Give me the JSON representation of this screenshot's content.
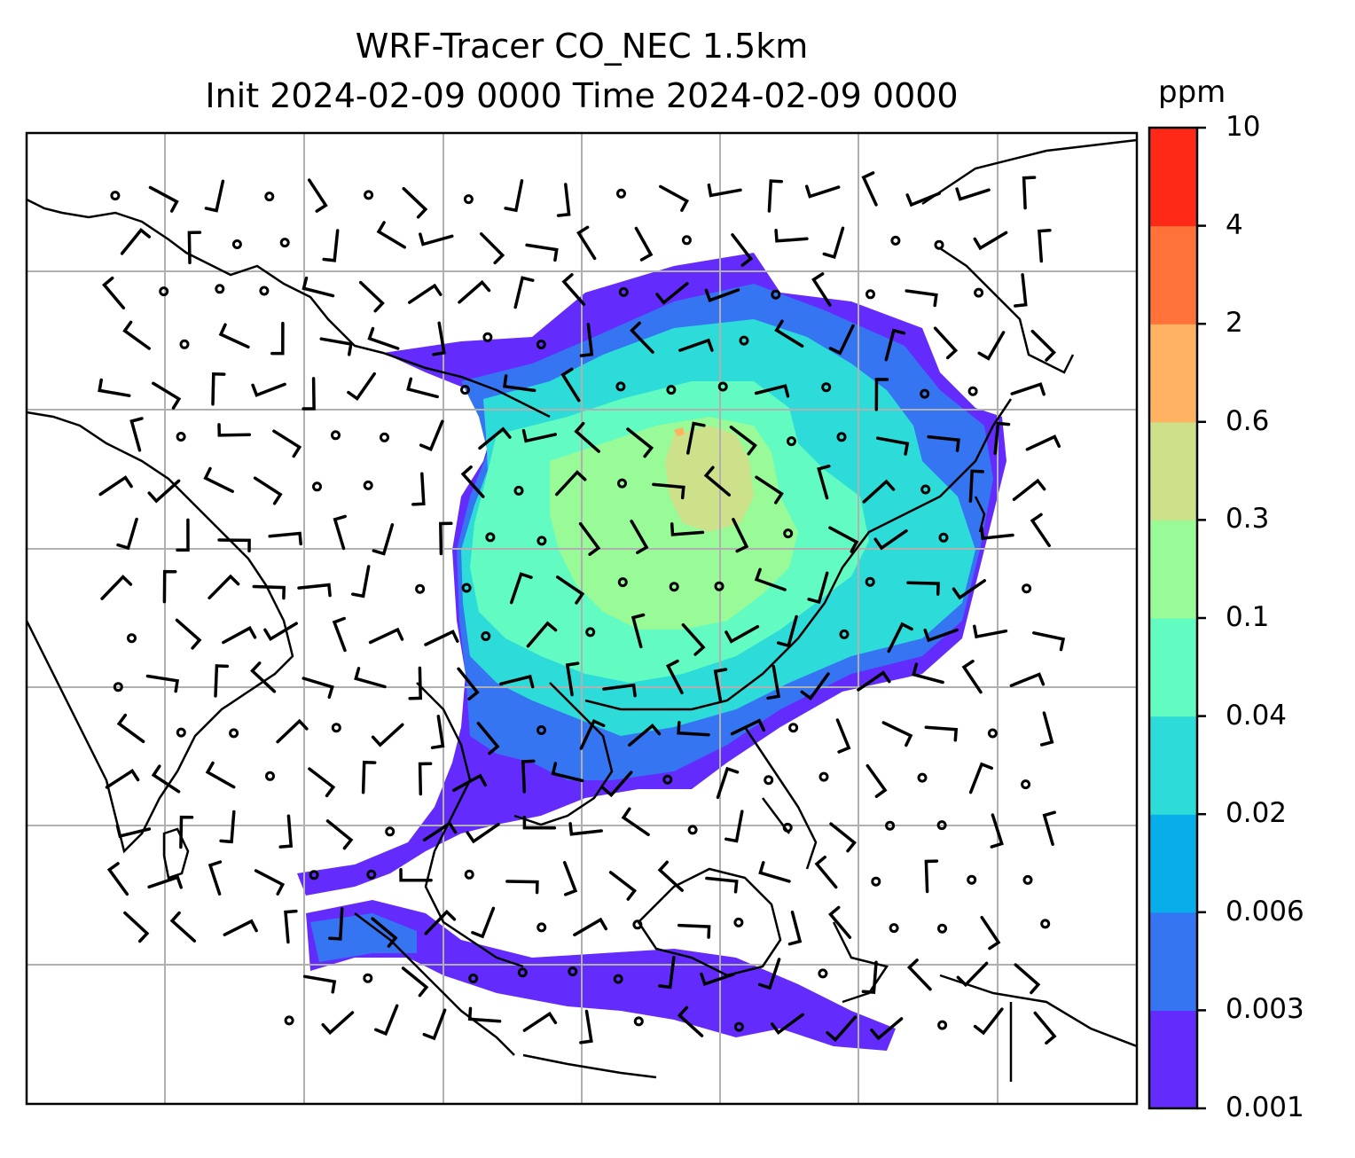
{
  "title": {
    "line1": "WRF-Tracer CO_NEC 1.5km",
    "line2": "Init 2024-02-09 0000 Time 2024-02-09 0000"
  },
  "colorbar": {
    "unit": "ppm",
    "levels": [
      "0.001",
      "0.003",
      "0.006",
      "0.02",
      "0.04",
      "0.1",
      "0.3",
      "0.6",
      "2",
      "4",
      "10"
    ],
    "colors": [
      "#632cfc",
      "#3575f2",
      "#07aeea",
      "#2ddcd8",
      "#62fbc1",
      "#98fb97",
      "#cde18a",
      "#ffb261",
      "#ff7338",
      "#fe2a17"
    ]
  },
  "map": {
    "variable": "CO_NEC tracer concentration",
    "overlay": "wind barbs and calm-wind circles",
    "gridlines": true,
    "coastlines": true
  }
}
